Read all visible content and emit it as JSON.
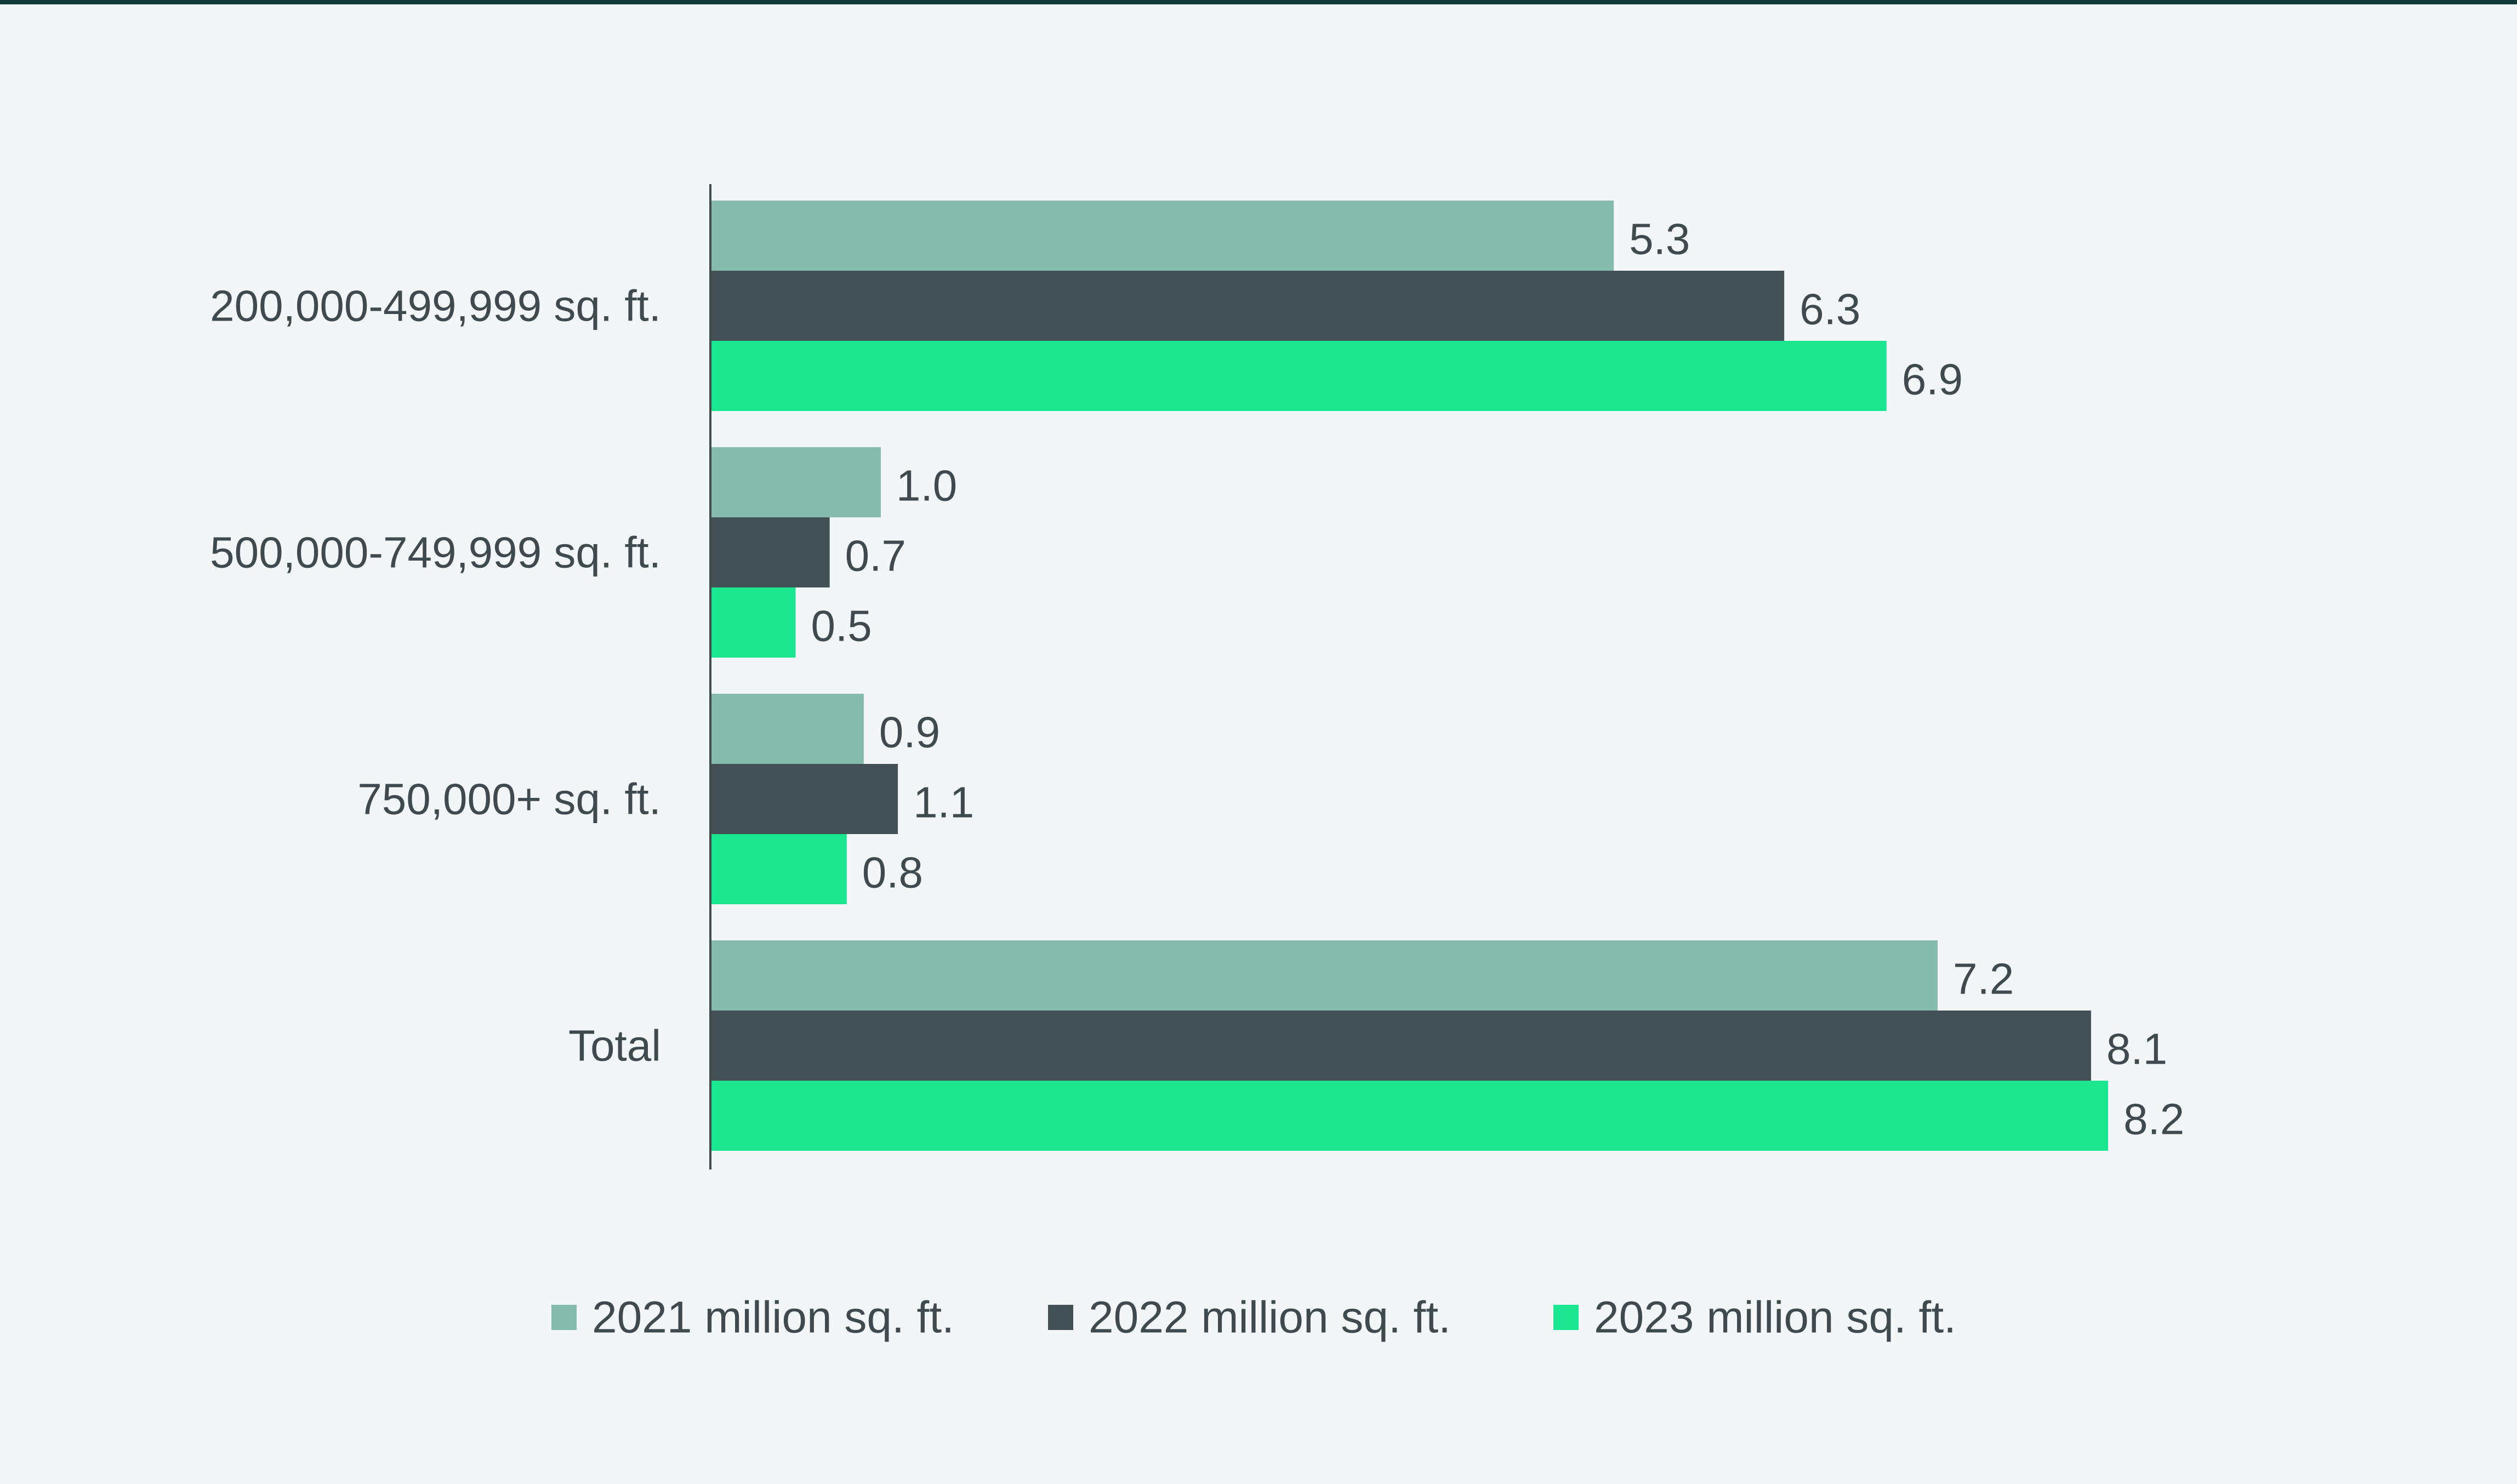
{
  "chart_data": {
    "type": "bar",
    "orientation": "horizontal",
    "title": "",
    "xlabel": "",
    "ylabel": "",
    "xlim": [
      0,
      8.2
    ],
    "grid": false,
    "legend_position": "bottom",
    "categories": [
      "200,000-499,999 sq. ft.",
      "500,000-749,999 sq. ft.",
      "750,000+ sq. ft.",
      "Total"
    ],
    "series": [
      {
        "name": "2021 million sq. ft.",
        "color": "#84bbad",
        "values": [
          5.3,
          1.0,
          0.9,
          7.2
        ],
        "labels": [
          "5.3",
          "1.0",
          "0.9",
          "7.2"
        ]
      },
      {
        "name": "2022 million sq. ft.",
        "color": "#435155",
        "values": [
          6.3,
          0.7,
          1.1,
          8.1
        ],
        "labels": [
          "6.3",
          "0.7",
          "1.1",
          "8.1"
        ]
      },
      {
        "name": "2023 million sq. ft.",
        "color": "#1ae68f",
        "values": [
          6.9,
          0.5,
          0.8,
          8.2
        ],
        "labels": [
          "6.9",
          "0.5",
          "0.8",
          "8.2"
        ]
      }
    ]
  }
}
